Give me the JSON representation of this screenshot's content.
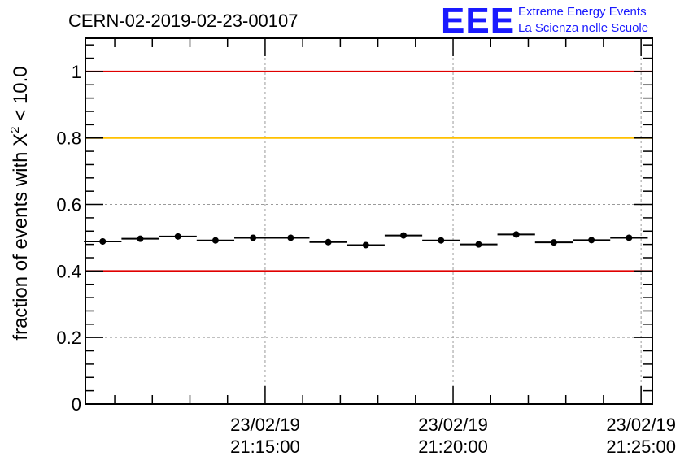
{
  "chart_data": {
    "type": "scatter",
    "title": "CERN-02-2019-02-23-00107",
    "ylabel_main": "fraction of events with X",
    "ylabel_sup": "2",
    "ylabel_tail": " < 10.0",
    "xlabel": "",
    "ylim": [
      0,
      1.1
    ],
    "xlim_minutes": [
      10.22,
      25.3
    ],
    "yticks": [
      0,
      0.2,
      0.4,
      0.6,
      0.8,
      1
    ],
    "ytick_labels": [
      "0",
      "0.2",
      "0.4",
      "0.6",
      "0.8",
      "1"
    ],
    "xticks": [
      {
        "minute": 15,
        "date": "23/02/19",
        "time": "21:15:00"
      },
      {
        "minute": 20,
        "date": "23/02/19",
        "time": "21:20:00"
      },
      {
        "minute": 25,
        "date": "23/02/19",
        "time": "21:25:00"
      }
    ],
    "grid": true,
    "reference_lines": [
      {
        "y": 1.0,
        "color": "#e00000"
      },
      {
        "y": 0.8,
        "color": "#ffc000"
      },
      {
        "y": 0.4,
        "color": "#e00000"
      }
    ],
    "series": [
      {
        "name": "fraction",
        "bin_width_minutes": 1,
        "x_minutes": [
          10.68,
          11.68,
          12.68,
          13.68,
          14.68,
          15.68,
          16.68,
          17.68,
          18.68,
          19.68,
          20.68,
          21.68,
          22.68,
          23.68,
          24.68
        ],
        "y": [
          0.489,
          0.497,
          0.504,
          0.492,
          0.5,
          0.5,
          0.487,
          0.478,
          0.507,
          0.492,
          0.48,
          0.51,
          0.486,
          0.493,
          0.5
        ]
      }
    ]
  },
  "logo": {
    "mark": "EEE",
    "line1": "Extreme Energy Events",
    "line2": "La Scienza nelle Scuole"
  }
}
